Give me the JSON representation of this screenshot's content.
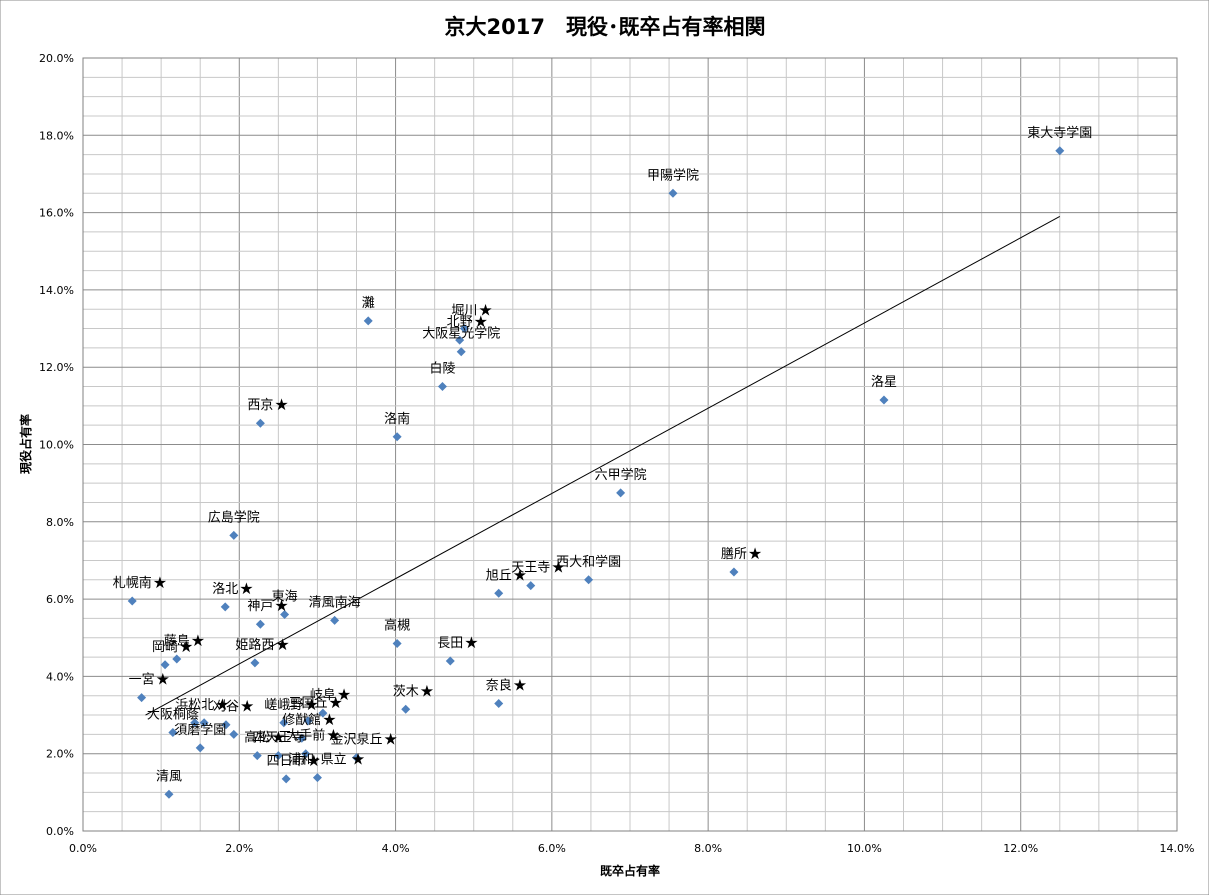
{
  "chart_data": {
    "type": "scatter",
    "title": "京大2017　現役･既卒占有率相関",
    "xlabel": "既卒占有率",
    "ylabel": "現役占有率",
    "xlim": [
      0,
      14
    ],
    "ylim": [
      0,
      20
    ],
    "x_tick_labels": [
      "0.0%",
      "2.0%",
      "4.0%",
      "6.0%",
      "8.0%",
      "10.0%",
      "12.0%",
      "14.0%"
    ],
    "y_tick_labels": [
      "0.0%",
      "2.0%",
      "4.0%",
      "6.0%",
      "8.0%",
      "10.0%",
      "12.0%",
      "14.0%",
      "16.0%",
      "18.0%",
      "20.0%"
    ],
    "grid": true,
    "marker_color": "#4f81bd",
    "trendline": {
      "x": [
        0.8,
        12.5
      ],
      "y": [
        3.0,
        15.9
      ]
    },
    "points": [
      {
        "x": 12.5,
        "y": 17.6,
        "label": "東大寺学園"
      },
      {
        "x": 7.55,
        "y": 16.5,
        "label": "甲陽学院"
      },
      {
        "x": 10.25,
        "y": 11.15,
        "label": "洛星"
      },
      {
        "x": 3.65,
        "y": 13.2,
        "label": "灘"
      },
      {
        "x": 4.88,
        "y": 13.0,
        "label": "堀川",
        "star": true
      },
      {
        "x": 4.82,
        "y": 12.7,
        "label": "北野",
        "star": true
      },
      {
        "x": 4.84,
        "y": 12.4,
        "label": "大阪星光学院"
      },
      {
        "x": 4.6,
        "y": 11.5,
        "label": "白陵"
      },
      {
        "x": 2.27,
        "y": 10.55,
        "label": "西京",
        "star": true
      },
      {
        "x": 4.02,
        "y": 10.2,
        "label": "洛南"
      },
      {
        "x": 6.88,
        "y": 8.75,
        "label": "六甲学院"
      },
      {
        "x": 1.93,
        "y": 7.65,
        "label": "広島学院"
      },
      {
        "x": 8.33,
        "y": 6.7,
        "label": "膳所",
        "star": true
      },
      {
        "x": 6.47,
        "y": 6.5,
        "label": "西大和学園"
      },
      {
        "x": 5.73,
        "y": 6.35,
        "label": "天王寺",
        "star": true
      },
      {
        "x": 5.32,
        "y": 6.15,
        "label": "旭丘",
        "star": true
      },
      {
        "x": 0.63,
        "y": 5.95,
        "label": "札幌南",
        "star": true
      },
      {
        "x": 1.82,
        "y": 5.8,
        "label": "洛北",
        "star": true
      },
      {
        "x": 2.58,
        "y": 5.6,
        "label": "東海"
      },
      {
        "x": 2.27,
        "y": 5.35,
        "label": "神戸",
        "star": true
      },
      {
        "x": 3.22,
        "y": 5.45,
        "label": "清風南海"
      },
      {
        "x": 4.02,
        "y": 4.85,
        "label": "高槻"
      },
      {
        "x": 4.7,
        "y": 4.4,
        "label": "長田",
        "star": true
      },
      {
        "x": 1.2,
        "y": 4.45,
        "label": "藤島",
        "star": true
      },
      {
        "x": 2.2,
        "y": 4.35,
        "label": "姫路西",
        "star": true
      },
      {
        "x": 1.05,
        "y": 4.3,
        "label": "岡崎",
        "star": true
      },
      {
        "x": 0.75,
        "y": 3.45,
        "label": "一宮",
        "star": true
      },
      {
        "x": 5.32,
        "y": 3.3,
        "label": "奈良",
        "star": true
      },
      {
        "x": 4.13,
        "y": 3.15,
        "label": "茨木",
        "star": true
      },
      {
        "x": 3.07,
        "y": 3.05,
        "label": "岐阜",
        "star": true
      },
      {
        "x": 2.88,
        "y": 2.85,
        "label": "三国丘",
        "star": true
      },
      {
        "x": 2.57,
        "y": 2.8,
        "label": "嵯峨野",
        "star": true
      },
      {
        "x": 1.83,
        "y": 2.75,
        "label": "刈谷",
        "star": true
      },
      {
        "x": 1.43,
        "y": 2.8,
        "label": "浜松北",
        "star": true
      },
      {
        "x": 1.55,
        "y": 2.8,
        "label": ""
      },
      {
        "x": 1.15,
        "y": 2.55,
        "label": "大阪桐蔭"
      },
      {
        "x": 1.93,
        "y": 2.5,
        "label": ""
      },
      {
        "x": 2.8,
        "y": 2.4,
        "label": "修猷館",
        "star": true
      },
      {
        "x": 2.85,
        "y": 2.0,
        "label": "大手前",
        "star": true
      },
      {
        "x": 1.5,
        "y": 2.15,
        "label": "須磨学園"
      },
      {
        "x": 2.23,
        "y": 1.95,
        "label": "高松",
        "star": true
      },
      {
        "x": 2.5,
        "y": 1.95,
        "label": "四天王寺"
      },
      {
        "x": 2.6,
        "y": 1.35,
        "label": "四日市",
        "star": true
      },
      {
        "x": 3.0,
        "y": 1.38,
        "label": "浦和･県立",
        "star": true
      },
      {
        "x": 3.5,
        "y": 1.9,
        "label": "金沢泉丘",
        "star": true
      },
      {
        "x": 1.1,
        "y": 0.95,
        "label": "清風"
      }
    ]
  }
}
